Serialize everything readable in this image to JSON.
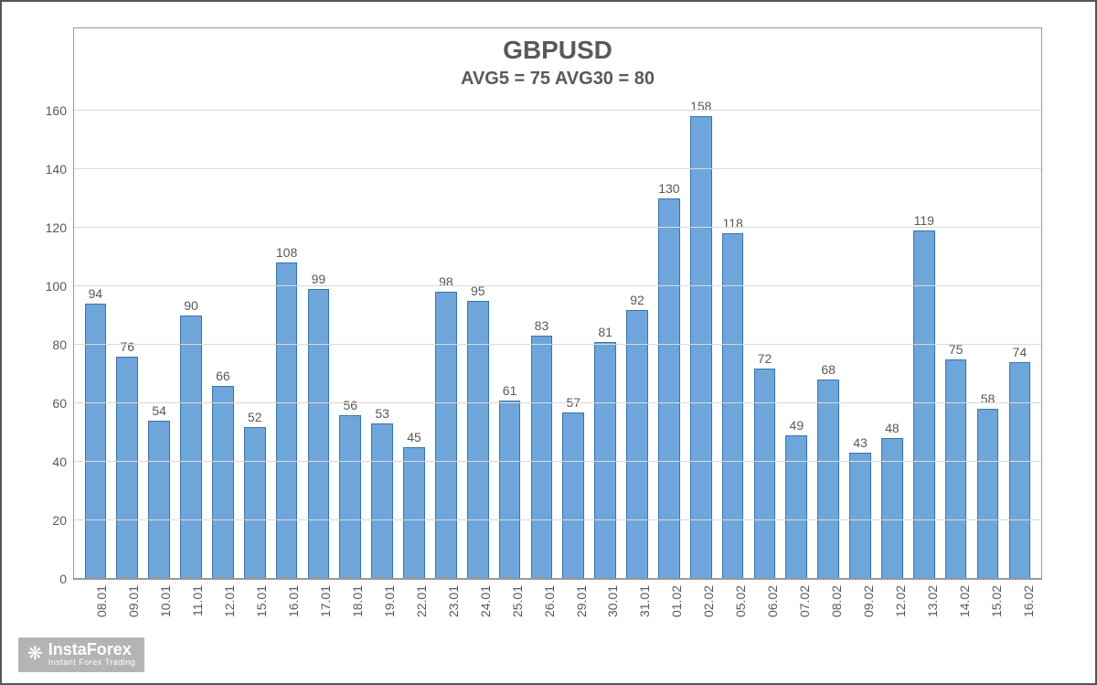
{
  "chart": {
    "type": "bar",
    "title": "GBPUSD",
    "title_fontsize": 28,
    "title_color": "#595959",
    "subtitle": "AVG5 = 75 AVG30 = 80",
    "subtitle_fontsize": 20,
    "subtitle_color": "#595959",
    "background_color": "#ffffff",
    "plot_border_color": "#999999",
    "grid_color": "#d9d9d9",
    "bar_fill_color": "#6ea5db",
    "bar_border_color": "#3b73a8",
    "bar_width": 0.68,
    "label_fontsize": 14,
    "label_color": "#595959",
    "ylim": [
      0,
      160
    ],
    "ytick_step": 20,
    "yticks": [
      0,
      20,
      40,
      60,
      80,
      100,
      120,
      140,
      160
    ],
    "categories": [
      "08.01",
      "09.01",
      "10.01",
      "11.01",
      "12.01",
      "15.01",
      "16.01",
      "17.01",
      "18.01",
      "19.01",
      "22.01",
      "23.01",
      "24.01",
      "25.01",
      "26.01",
      "29.01",
      "30.01",
      "31.01",
      "01.02",
      "02.02",
      "05.02",
      "06.02",
      "07.02",
      "08.02",
      "09.02",
      "12.02",
      "13.02",
      "14.02",
      "15.02",
      "16.02"
    ],
    "values": [
      94,
      76,
      54,
      90,
      66,
      52,
      108,
      99,
      56,
      53,
      45,
      98,
      95,
      61,
      83,
      57,
      81,
      92,
      130,
      158,
      118,
      72,
      49,
      68,
      43,
      48,
      119,
      75,
      58,
      74
    ],
    "x_label_rotation": -90
  },
  "watermark": {
    "brand": "InstaForex",
    "tagline": "Instant Forex Trading",
    "icon_glyph": "❋"
  }
}
